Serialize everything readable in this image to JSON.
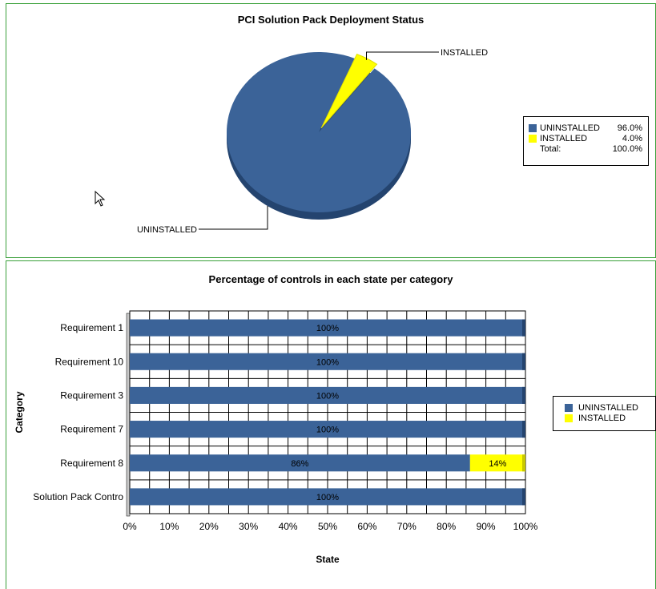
{
  "colors": {
    "uninstalled": "#3b6398",
    "installed": "#ffff00",
    "panel_border": "#3aa03a"
  },
  "chart_data": [
    {
      "type": "pie",
      "title": "PCI Solution Pack Deployment Status",
      "slices": [
        {
          "label": "UNINSTALLED",
          "value": 96.0,
          "value_text": "96.0%"
        },
        {
          "label": "INSTALLED",
          "value": 4.0,
          "value_text": "4.0%"
        }
      ],
      "legend": {
        "placement": "right",
        "total_label": "Total:",
        "total_value": "100.0%"
      }
    },
    {
      "type": "bar",
      "orientation": "horizontal",
      "stacked": true,
      "title": "Percentage of controls in each state per category",
      "xlabel": "State",
      "ylabel": "Category",
      "categories": [
        "Requirement 1",
        "Requirement 10",
        "Requirement 3",
        "Requirement 7",
        "Requirement 8",
        "Solution Pack Contro"
      ],
      "series": [
        {
          "name": "UNINSTALLED",
          "values": [
            100,
            100,
            100,
            100,
            86,
            100
          ],
          "labels": [
            "100%",
            "100%",
            "100%",
            "100%",
            "86%",
            "100%"
          ]
        },
        {
          "name": "INSTALLED",
          "values": [
            0,
            0,
            0,
            0,
            14,
            0
          ],
          "labels": [
            "",
            "",
            "",
            "",
            "14%",
            ""
          ]
        }
      ],
      "xlim": [
        0,
        100
      ],
      "xticks": [
        "0%",
        "10%",
        "20%",
        "30%",
        "40%",
        "50%",
        "60%",
        "70%",
        "80%",
        "90%",
        "100%"
      ],
      "grid": true,
      "legend": {
        "placement": "right"
      }
    }
  ]
}
